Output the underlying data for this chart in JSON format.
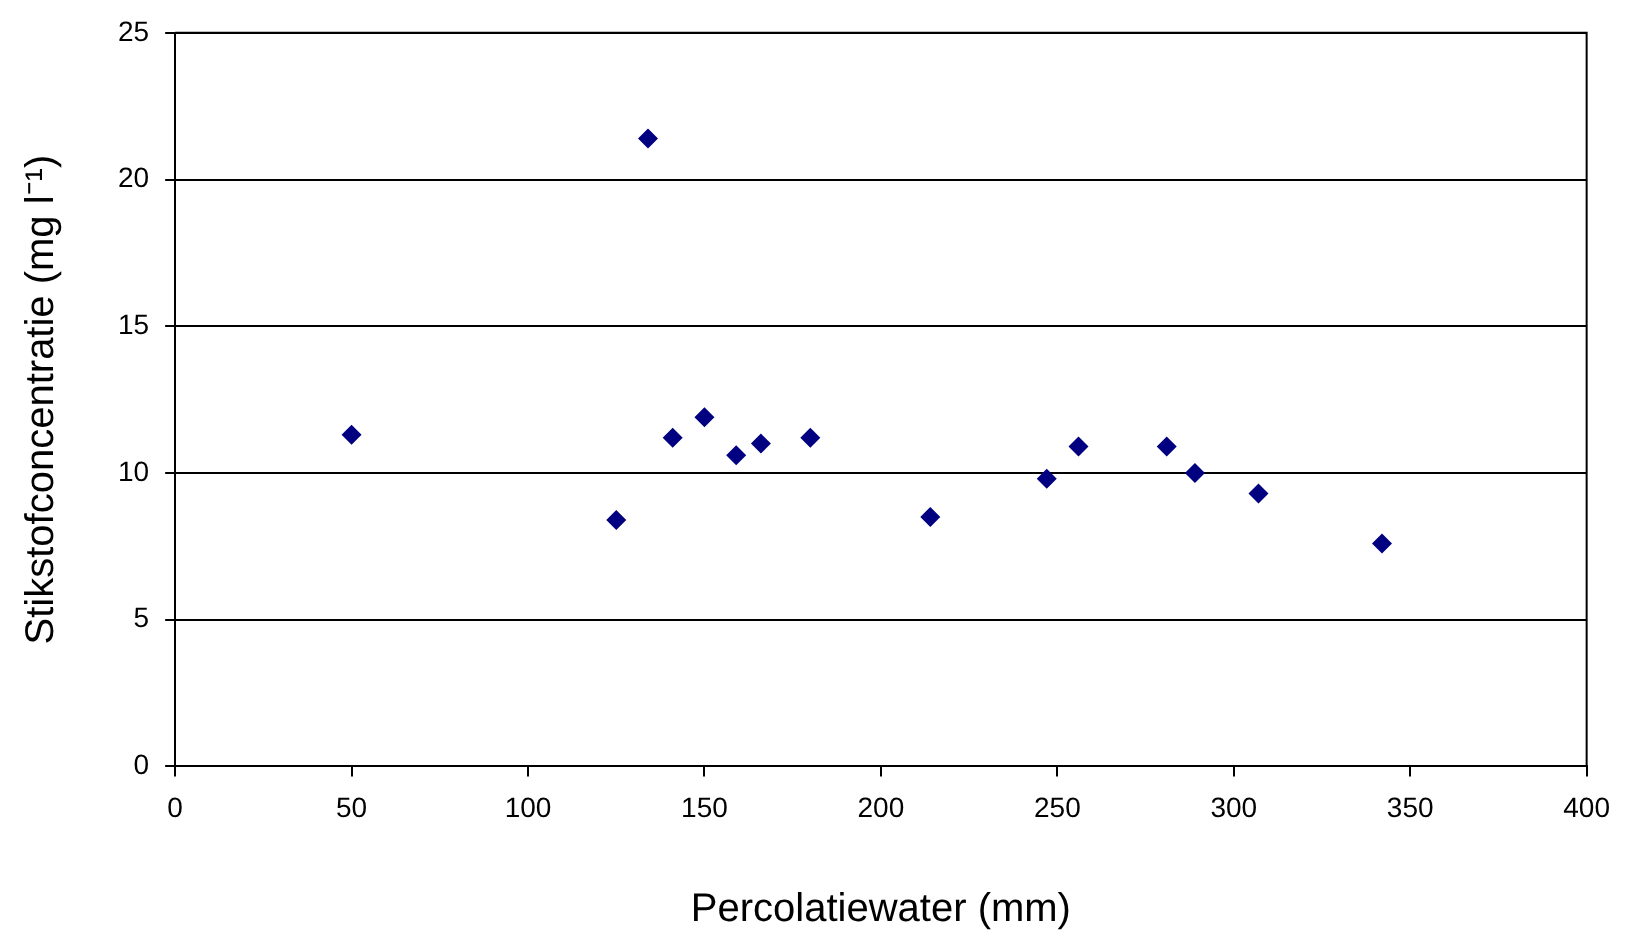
{
  "chart_data": {
    "type": "scatter",
    "xlabel": "Percolatiewater (mm)",
    "ylabel": "Stikstofconcentratie (mg l⁻¹)",
    "x": [
      50,
      125,
      134,
      141,
      150,
      159,
      166,
      180,
      214,
      247,
      256,
      281,
      289,
      307,
      342
    ],
    "series": [
      {
        "color": "#000080",
        "values": [
          11.3,
          8.4,
          21.4,
          11.2,
          11.9,
          10.6,
          11.0,
          11.2,
          8.5,
          9.8,
          10.9,
          10.9,
          10.0,
          9.3,
          7.6
        ]
      }
    ],
    "xlim": [
      0,
      400
    ],
    "xticks": [
      0,
      50,
      100,
      150,
      200,
      250,
      300,
      350,
      400
    ],
    "ylim": [
      0,
      25
    ],
    "yticks": [
      0,
      5,
      10,
      15,
      20,
      25
    ],
    "grid": "y",
    "legend": false,
    "marker": "diamond"
  }
}
